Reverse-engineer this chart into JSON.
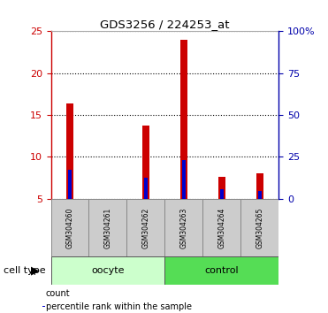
{
  "title": "GDS3256 / 224253_at",
  "samples": [
    "GSM304260",
    "GSM304261",
    "GSM304262",
    "GSM304263",
    "GSM304264",
    "GSM304265"
  ],
  "red_top": [
    16.4,
    5.0,
    13.7,
    24.0,
    7.6,
    8.0
  ],
  "blue_top": [
    8.5,
    5.0,
    7.5,
    9.6,
    6.1,
    5.9
  ],
  "bar_bottom": 5.0,
  "ylim_left": [
    5,
    25
  ],
  "ylim_right": [
    0,
    100
  ],
  "yticks_left": [
    5,
    10,
    15,
    20,
    25
  ],
  "yticks_right": [
    0,
    25,
    50,
    75,
    100
  ],
  "ytick_labels_right": [
    "0",
    "25",
    "50",
    "75",
    "100%"
  ],
  "cell_type_label": "cell type",
  "bar_width": 0.18,
  "red_color": "#cc0000",
  "blue_color": "#0000cc",
  "left_axis_color": "#cc0000",
  "right_axis_color": "#0000aa",
  "tick_bg": "#cccccc",
  "oocyte_color_light": "#ccffcc",
  "oocyte_color_dark": "#55cc55",
  "legend_items": [
    {
      "color": "#cc0000",
      "label": "count"
    },
    {
      "color": "#0000cc",
      "label": "percentile rank within the sample"
    }
  ],
  "group_defs": [
    {
      "label": "oocyte",
      "xstart": -0.5,
      "xend": 2.5,
      "color": "#ccffcc"
    },
    {
      "label": "control",
      "xstart": 2.5,
      "xend": 5.5,
      "color": "#55dd55"
    }
  ]
}
